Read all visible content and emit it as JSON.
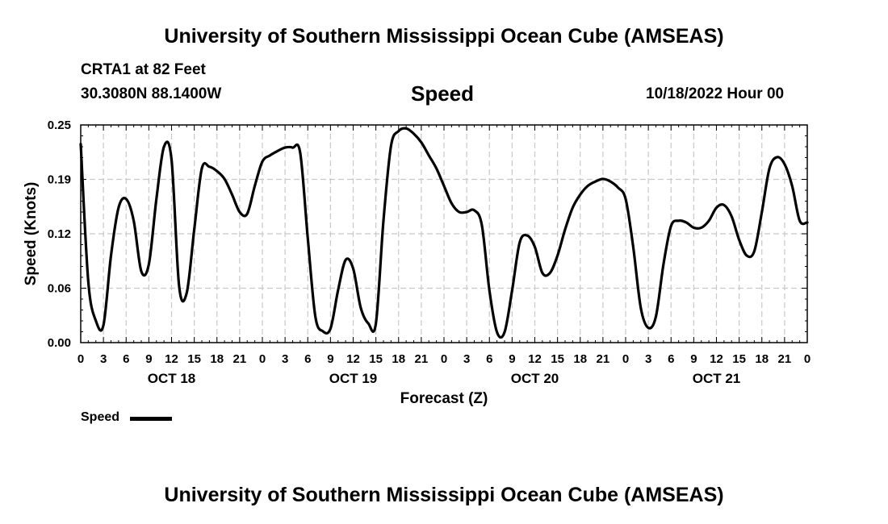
{
  "page": {
    "title": "University of Southern Mississippi Ocean Cube (AMSEAS)",
    "footer_title": "University of Southern Mississippi Ocean Cube (AMSEAS)"
  },
  "header": {
    "station": "CRTA1 at 82 Feet",
    "coords": "30.3080N  88.1400W",
    "chart_title": "Speed",
    "datetime": "10/18/2022 Hour 00"
  },
  "chart_data": {
    "type": "line",
    "title": "Speed",
    "xlabel": "Forecast (Z)",
    "ylabel": "Speed (Knots)",
    "ylim": [
      0,
      0.25
    ],
    "xlim": [
      0,
      96
    ],
    "yticks": [
      "0.00",
      "0.06",
      "0.12",
      "0.19",
      "0.25"
    ],
    "xtick_labels": [
      "0",
      "3",
      "6",
      "9",
      "12",
      "15",
      "18",
      "21",
      "0",
      "3",
      "6",
      "9",
      "12",
      "15",
      "18",
      "21",
      "0",
      "3",
      "6",
      "9",
      "12",
      "15",
      "18",
      "21",
      "0",
      "3",
      "6",
      "9",
      "12",
      "15",
      "18",
      "21",
      "0"
    ],
    "day_labels": [
      "OCT 18",
      "OCT 19",
      "OCT 20",
      "OCT 21"
    ],
    "grid": true,
    "legend": {
      "position": "bottom-left",
      "entries": [
        "Speed"
      ]
    },
    "series": [
      {
        "name": "Speed",
        "x": [
          0,
          1,
          2,
          3,
          4,
          5,
          6,
          7,
          8,
          9,
          10,
          11,
          12,
          13,
          14,
          15,
          16,
          17,
          18,
          19,
          20,
          21,
          22,
          23,
          24,
          25,
          26,
          27,
          28,
          29,
          30,
          31,
          32,
          33,
          34,
          35,
          36,
          37,
          38,
          39,
          40,
          41,
          42,
          43,
          44,
          45,
          46,
          47,
          48,
          49,
          50,
          51,
          52,
          53,
          54,
          55,
          56,
          57,
          58,
          59,
          60,
          61,
          62,
          63,
          64,
          65,
          66,
          67,
          68,
          69,
          70,
          71,
          72,
          73,
          74,
          75,
          76,
          77,
          78,
          79,
          80,
          81,
          82,
          83,
          84,
          85,
          86,
          87,
          88,
          89,
          90,
          91,
          92,
          93,
          94,
          95,
          96
        ],
        "values": [
          0.228,
          0.07,
          0.025,
          0.02,
          0.1,
          0.155,
          0.165,
          0.14,
          0.082,
          0.09,
          0.165,
          0.225,
          0.21,
          0.065,
          0.057,
          0.13,
          0.2,
          0.202,
          0.197,
          0.188,
          0.17,
          0.15,
          0.148,
          0.18,
          0.208,
          0.215,
          0.22,
          0.224,
          0.224,
          0.218,
          0.12,
          0.03,
          0.013,
          0.016,
          0.06,
          0.095,
          0.085,
          0.04,
          0.022,
          0.022,
          0.14,
          0.226,
          0.243,
          0.246,
          0.24,
          0.23,
          0.215,
          0.2,
          0.18,
          0.16,
          0.15,
          0.15,
          0.152,
          0.135,
          0.06,
          0.012,
          0.012,
          0.06,
          0.115,
          0.123,
          0.11,
          0.08,
          0.08,
          0.1,
          0.13,
          0.155,
          0.17,
          0.18,
          0.185,
          0.188,
          0.185,
          0.178,
          0.165,
          0.11,
          0.04,
          0.017,
          0.03,
          0.09,
          0.134,
          0.14,
          0.138,
          0.132,
          0.132,
          0.14,
          0.155,
          0.158,
          0.145,
          0.118,
          0.1,
          0.105,
          0.15,
          0.2,
          0.213,
          0.205,
          0.18,
          0.14,
          0.138
        ]
      }
    ]
  }
}
